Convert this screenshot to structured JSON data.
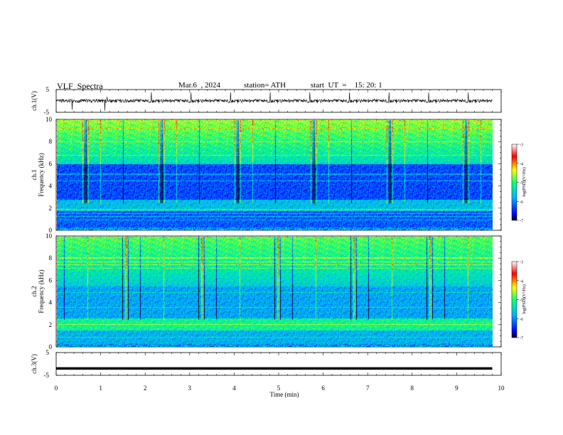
{
  "header": {
    "title": "VLF  Spectra",
    "date": "Mar.6  , 2024",
    "station": "station= ATH",
    "start": "start  UT  =    15: 20: 1"
  },
  "chart_data": [
    {
      "type": "line",
      "panel": "ch1-waveform",
      "ylabel": "ch.1(V)",
      "ylim": [
        -5,
        5
      ],
      "yticks": [
        "5",
        "-5"
      ],
      "xlim": [
        0,
        10
      ],
      "baseline": 0,
      "grid": false
    },
    {
      "type": "heatmap",
      "panel": "ch1-spectrogram",
      "ylabel": "Frequency (kHz)",
      "ylabel2": "ch.1",
      "ylim": [
        0,
        10
      ],
      "yticks": [
        "0",
        "2",
        "4",
        "6",
        "8",
        "10"
      ],
      "xlim": [
        0,
        9.8
      ],
      "colorbar": {
        "label": "log(PSD)(V²/Hz)",
        "range": [
          -7,
          -3
        ],
        "ticks": [
          "-3",
          "-4",
          "-5",
          "-6",
          "-7"
        ]
      }
    },
    {
      "type": "heatmap",
      "panel": "ch2-spectrogram",
      "ylabel": "Frequency (kHz)",
      "ylabel2": "ch.2",
      "ylim": [
        0,
        10
      ],
      "yticks": [
        "0",
        "2",
        "4",
        "6",
        "8",
        "10"
      ],
      "xlim": [
        0,
        9.8
      ],
      "colorbar": {
        "label": "log(PSD)(V²/Hz)",
        "range": [
          -7,
          -3
        ],
        "ticks": [
          "-3",
          "-4",
          "-5",
          "-6",
          "-7"
        ]
      }
    },
    {
      "type": "line",
      "panel": "ch3-waveform",
      "ylabel": "ch.3(V)",
      "ylim": [
        -5,
        5
      ],
      "yticks": [
        "5",
        "-5"
      ],
      "xlabel": "Time  (min)",
      "xlim": [
        0,
        10
      ],
      "xticks": [
        "0",
        "1",
        "2",
        "3",
        "4",
        "5",
        "6",
        "7",
        "8",
        "9",
        "10"
      ],
      "constant_value": -2
    }
  ],
  "colors": {
    "colormap": [
      "#000000",
      "#0000ff",
      "#00b4ff",
      "#00ff7f",
      "#ffff00",
      "#ff0000",
      "#ffffff"
    ]
  }
}
